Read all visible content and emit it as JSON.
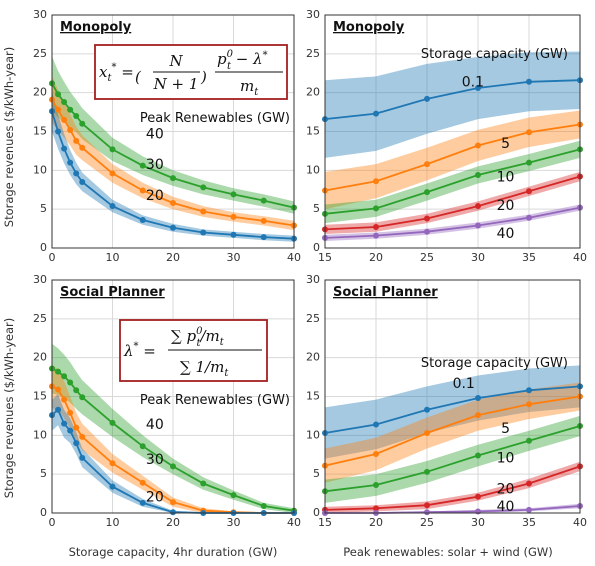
{
  "figure": {
    "ylabel": "Storage revenues ($/kWh-year)",
    "xlabel_left": "Storage capacity, 4hr duration (GW)",
    "xlabel_right": "Peak renewables: solar + wind (GW)"
  },
  "formulas": {
    "monopoly": "x*t = (N/(N+1)) (p0t − λ*)/mt",
    "social": "λ* = Σ p0t/mt / Σ 1/mt"
  },
  "colors": {
    "blue": "#1f77b4",
    "orange": "#ff7f0e",
    "green": "#2ca02c",
    "red": "#d62728",
    "purple": "#9467bd",
    "grid": "#d9d9d9",
    "formula_box": "#a31f1f"
  },
  "chart_data": [
    {
      "id": "mono_left",
      "type": "line",
      "title": "Monopoly",
      "annotation": "Peak Renewables (GW)",
      "xlim": [
        0,
        40
      ],
      "ylim": [
        0,
        30
      ],
      "xticks": [
        0,
        10,
        20,
        30,
        40
      ],
      "yticks": [
        0,
        5,
        10,
        15,
        20,
        25,
        30
      ],
      "grid": true,
      "series": [
        {
          "name": "40",
          "color": "green",
          "label_at": [
            17,
            14.6
          ],
          "x": [
            0,
            1,
            2,
            3,
            4,
            5,
            10,
            15,
            20,
            25,
            30,
            35,
            40
          ],
          "y": [
            21.2,
            19.8,
            18.8,
            17.8,
            17.0,
            16.0,
            12.7,
            10.6,
            9.0,
            7.8,
            6.9,
            6.1,
            5.2
          ],
          "band": [
            3.5,
            3.0,
            2.6,
            2.3,
            2.1,
            2.0,
            1.5,
            1.2,
            1.0,
            0.9,
            0.8,
            0.8,
            0.8
          ]
        },
        {
          "name": "30",
          "color": "orange",
          "label_at": [
            17,
            10.7
          ],
          "x": [
            0,
            1,
            2,
            3,
            4,
            5,
            10,
            15,
            20,
            25,
            30,
            35,
            40
          ],
          "y": [
            19.1,
            17.8,
            16.5,
            15.2,
            13.8,
            12.9,
            9.6,
            7.4,
            5.8,
            4.7,
            4.0,
            3.5,
            2.9
          ],
          "band": [
            3.0,
            2.6,
            2.3,
            2.0,
            1.8,
            1.6,
            1.2,
            1.0,
            0.8,
            0.7,
            0.6,
            0.6,
            0.6
          ]
        },
        {
          "name": "20",
          "color": "blue",
          "label_at": [
            17,
            6.7
          ],
          "x": [
            0,
            1,
            2,
            3,
            4,
            5,
            10,
            15,
            20,
            25,
            30,
            35,
            40
          ],
          "y": [
            17.6,
            15.0,
            12.8,
            11.0,
            9.6,
            8.5,
            5.4,
            3.6,
            2.6,
            2.0,
            1.7,
            1.4,
            1.2
          ],
          "band": [
            2.6,
            2.2,
            1.9,
            1.6,
            1.4,
            1.2,
            0.8,
            0.6,
            0.5,
            0.4,
            0.4,
            0.4,
            0.4
          ]
        }
      ]
    },
    {
      "id": "mono_right",
      "type": "line",
      "title": "Monopoly",
      "annotation": "Storage capacity (GW)",
      "xlim": [
        15,
        40
      ],
      "ylim": [
        0,
        30
      ],
      "xticks": [
        15,
        20,
        25,
        30,
        35,
        40
      ],
      "yticks": [
        0,
        5,
        10,
        15,
        20,
        25,
        30
      ],
      "grid": true,
      "series": [
        {
          "name": "0.1",
          "color": "blue",
          "label_at": [
            29.5,
            21.3
          ],
          "x": [
            15,
            20,
            25,
            30,
            35,
            40
          ],
          "y": [
            16.6,
            17.3,
            19.2,
            20.6,
            21.4,
            21.6
          ],
          "band": [
            5.0,
            4.8,
            4.5,
            4.0,
            3.8,
            3.7
          ]
        },
        {
          "name": "5",
          "color": "orange",
          "label_at": [
            32.7,
            13.4
          ],
          "x": [
            15,
            20,
            25,
            30,
            35,
            40
          ],
          "y": [
            7.4,
            8.6,
            10.8,
            13.2,
            14.9,
            15.9
          ],
          "band": [
            2.4,
            2.2,
            2.1,
            2.0,
            1.9,
            1.8
          ]
        },
        {
          "name": "10",
          "color": "green",
          "label_at": [
            32.7,
            9.1
          ],
          "x": [
            15,
            20,
            25,
            30,
            35,
            40
          ],
          "y": [
            4.4,
            5.1,
            7.2,
            9.4,
            11.0,
            12.7
          ],
          "band": [
            1.2,
            1.1,
            1.1,
            1.1,
            1.1,
            1.1
          ]
        },
        {
          "name": "20",
          "color": "red",
          "label_at": [
            32.7,
            5.4
          ],
          "x": [
            15,
            20,
            25,
            30,
            35,
            40
          ],
          "y": [
            2.4,
            2.7,
            3.8,
            5.4,
            7.3,
            9.2
          ],
          "band": [
            0.6,
            0.6,
            0.6,
            0.6,
            0.6,
            0.6
          ]
        },
        {
          "name": "40",
          "color": "purple",
          "label_at": [
            32.7,
            1.8
          ],
          "x": [
            15,
            20,
            25,
            30,
            35,
            40
          ],
          "y": [
            1.3,
            1.6,
            2.1,
            2.9,
            3.9,
            5.2
          ],
          "band": [
            0.4,
            0.4,
            0.4,
            0.4,
            0.4,
            0.4
          ]
        }
      ]
    },
    {
      "id": "social_left",
      "type": "line",
      "title": "Social Planner",
      "annotation": "Peak Renewables (GW)",
      "xlim": [
        0,
        40
      ],
      "ylim": [
        0,
        30
      ],
      "xticks": [
        0,
        10,
        20,
        30,
        40
      ],
      "yticks": [
        0,
        5,
        10,
        15,
        20,
        25,
        30
      ],
      "grid": true,
      "series": [
        {
          "name": "40",
          "color": "green",
          "label_at": [
            17,
            11.3
          ],
          "x": [
            0,
            1,
            2,
            3,
            4,
            5,
            10,
            15,
            20,
            25,
            30,
            35,
            40
          ],
          "y": [
            18.6,
            18.2,
            17.6,
            16.8,
            15.8,
            14.9,
            11.6,
            8.6,
            6.0,
            3.8,
            2.3,
            0.9,
            0.3
          ],
          "band": [
            3.2,
            3.0,
            2.8,
            2.6,
            2.4,
            2.2,
            1.8,
            1.4,
            1.0,
            0.8,
            0.6,
            0.4,
            0.3
          ]
        },
        {
          "name": "30",
          "color": "orange",
          "label_at": [
            17,
            6.8
          ],
          "x": [
            0,
            1,
            2,
            3,
            4,
            5,
            10,
            15,
            20,
            25,
            30,
            35,
            40
          ],
          "y": [
            16.3,
            15.9,
            14.6,
            12.9,
            11.0,
            9.8,
            6.4,
            3.9,
            1.4,
            0.3,
            0.1,
            0.0,
            0.0
          ],
          "band": [
            2.8,
            2.6,
            2.4,
            2.1,
            1.9,
            1.7,
            1.2,
            0.9,
            0.6,
            0.3,
            0.1,
            0.1,
            0.1
          ]
        },
        {
          "name": "20",
          "color": "blue",
          "label_at": [
            17,
            2.0
          ],
          "x": [
            0,
            1,
            2,
            3,
            4,
            5,
            10,
            15,
            20,
            25,
            30,
            35,
            40
          ],
          "y": [
            12.6,
            13.3,
            11.5,
            10.6,
            9.0,
            7.1,
            3.4,
            1.3,
            0.1,
            0.0,
            0.0,
            0.0,
            0.0
          ],
          "band": [
            2.0,
            2.0,
            1.8,
            1.6,
            1.4,
            1.2,
            0.8,
            0.5,
            0.2,
            0.1,
            0.1,
            0.1,
            0.1
          ]
        }
      ]
    },
    {
      "id": "social_right",
      "type": "line",
      "title": "Social Planner",
      "annotation": "Storage capacity (GW)",
      "xlim": [
        15,
        40
      ],
      "ylim": [
        0,
        30
      ],
      "xticks": [
        15,
        20,
        25,
        30,
        35,
        40
      ],
      "yticks": [
        0,
        5,
        10,
        15,
        20,
        25,
        30
      ],
      "grid": true,
      "series": [
        {
          "name": "0.1",
          "color": "blue",
          "label_at": [
            28.6,
            16.6
          ],
          "x": [
            15,
            20,
            25,
            30,
            35,
            40
          ],
          "y": [
            10.3,
            11.4,
            13.3,
            14.8,
            15.8,
            16.3
          ],
          "band": [
            3.3,
            3.2,
            3.0,
            2.9,
            2.8,
            2.7
          ]
        },
        {
          "name": "5",
          "color": "orange",
          "label_at": [
            32.7,
            10.8
          ],
          "x": [
            15,
            20,
            25,
            30,
            35,
            40
          ],
          "y": [
            6.1,
            7.6,
            10.3,
            12.6,
            14.0,
            15.0
          ],
          "band": [
            2.2,
            2.1,
            2.0,
            2.0,
            1.9,
            1.8
          ]
        },
        {
          "name": "10",
          "color": "green",
          "label_at": [
            32.7,
            7.0
          ],
          "x": [
            15,
            20,
            25,
            30,
            35,
            40
          ],
          "y": [
            2.8,
            3.6,
            5.3,
            7.4,
            9.3,
            11.2
          ],
          "band": [
            1.5,
            1.4,
            1.4,
            1.4,
            1.3,
            1.3
          ]
        },
        {
          "name": "20",
          "color": "red",
          "label_at": [
            32.7,
            3.0
          ],
          "x": [
            15,
            20,
            25,
            30,
            35,
            40
          ],
          "y": [
            0.4,
            0.6,
            1.0,
            2.1,
            3.8,
            6.0
          ],
          "band": [
            0.4,
            0.4,
            0.5,
            0.5,
            0.6,
            0.6
          ]
        },
        {
          "name": "40",
          "color": "purple",
          "label_at": [
            32.7,
            0.8
          ],
          "x": [
            15,
            20,
            25,
            30,
            35,
            40
          ],
          "y": [
            0.0,
            0.0,
            0.1,
            0.2,
            0.4,
            0.9
          ],
          "band": [
            0.1,
            0.1,
            0.1,
            0.2,
            0.2,
            0.3
          ]
        }
      ]
    }
  ]
}
